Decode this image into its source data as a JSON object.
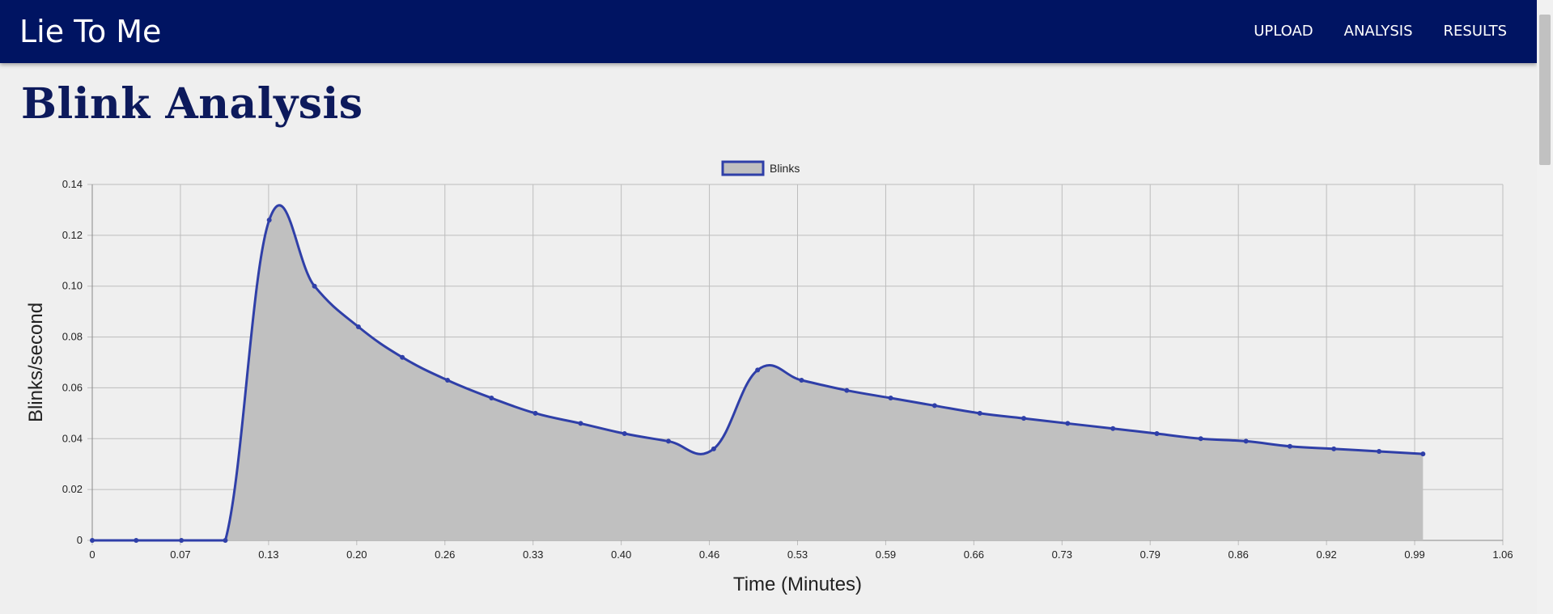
{
  "app": {
    "brand": "Lie To Me"
  },
  "nav": {
    "items": [
      "UPLOAD",
      "ANALYSIS",
      "RESULTS"
    ]
  },
  "page": {
    "title": "Blink Analysis"
  },
  "colors": {
    "navbar": "#001462",
    "line": "#2f3fa8",
    "fill": "#c0c0c0",
    "title": "#0d1a5c"
  },
  "chart_data": {
    "type": "area",
    "title": "",
    "xlabel": "Time (Minutes)",
    "ylabel": "Blinks/second",
    "x_tick_labels": [
      "0",
      "0.07",
      "0.13",
      "0.20",
      "0.26",
      "0.33",
      "0.40",
      "0.46",
      "0.53",
      "0.59",
      "0.66",
      "0.73",
      "0.79",
      "0.86",
      "0.92",
      "0.99",
      "1.06"
    ],
    "y_tick_labels": [
      "0",
      "0.02",
      "0.04",
      "0.06",
      "0.08",
      "0.10",
      "0.12",
      "0.14"
    ],
    "xlim": [
      0,
      1.06
    ],
    "ylim": [
      0,
      0.14
    ],
    "grid": true,
    "legend_position": "top-center",
    "series": [
      {
        "name": "Blinks",
        "x": [
          0,
          0.033,
          0.067,
          0.1,
          0.133,
          0.167,
          0.2,
          0.233,
          0.267,
          0.3,
          0.333,
          0.367,
          0.4,
          0.433,
          0.467,
          0.5,
          0.533,
          0.567,
          0.6,
          0.633,
          0.667,
          0.7,
          0.733,
          0.767,
          0.8,
          0.833,
          0.867,
          0.9,
          0.933,
          0.967,
          1.0
        ],
        "y": [
          0,
          0,
          0,
          0,
          0.126,
          0.1,
          0.084,
          0.072,
          0.063,
          0.056,
          0.05,
          0.046,
          0.042,
          0.039,
          0.036,
          0.067,
          0.063,
          0.059,
          0.056,
          0.053,
          0.05,
          0.048,
          0.046,
          0.044,
          0.042,
          0.04,
          0.039,
          0.037,
          0.036,
          0.035,
          0.034
        ]
      }
    ]
  }
}
